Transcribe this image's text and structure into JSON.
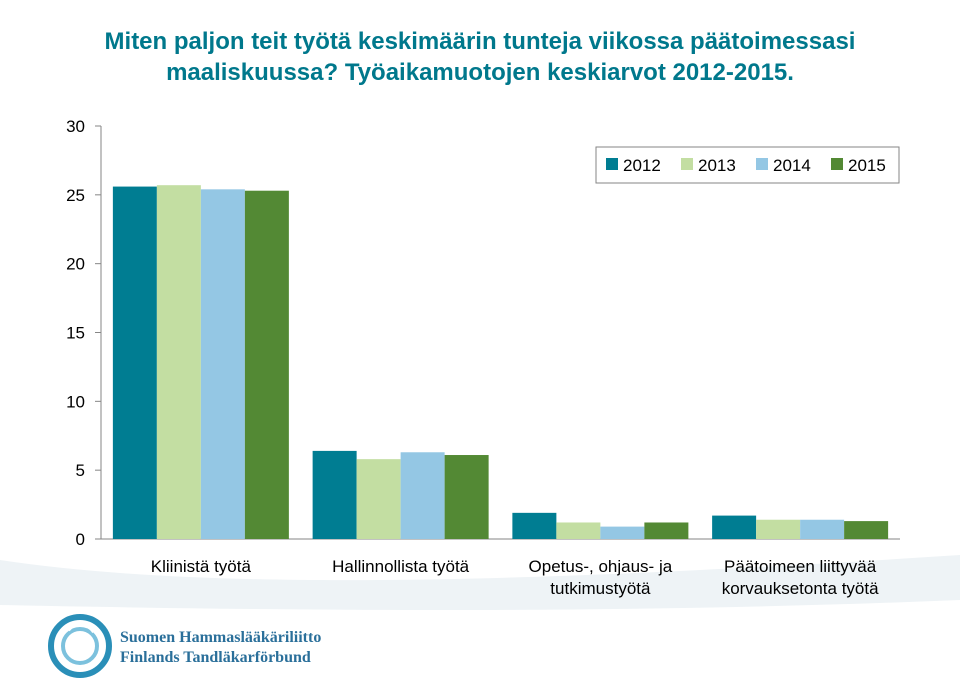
{
  "title": {
    "line1": "Miten paljon teit työtä keskimäärin tunteja viikossa päätoimessasi",
    "line2": "maaliskuussa? Työaikamuotojen keskiarvot 2012-2015."
  },
  "chart_data": {
    "type": "bar",
    "categories": [
      [
        "Kliinistä työtä"
      ],
      [
        "Hallinnollista työtä"
      ],
      [
        "Opetus-, ohjaus- ja",
        "tutkimustyötä"
      ],
      [
        "Päätoimeen liittyvää",
        "korvauksetonta työtä"
      ]
    ],
    "series": [
      {
        "name": "2012",
        "color": "#007d92",
        "values": [
          25.6,
          6.4,
          1.9,
          1.7
        ]
      },
      {
        "name": "2013",
        "color": "#c3dea2",
        "values": [
          25.7,
          5.8,
          1.2,
          1.4
        ]
      },
      {
        "name": "2014",
        "color": "#94c7e4",
        "values": [
          25.4,
          6.3,
          0.9,
          1.4
        ]
      },
      {
        "name": "2015",
        "color": "#538934",
        "values": [
          25.3,
          6.1,
          1.2,
          1.3
        ]
      }
    ],
    "yticks": [
      "0",
      "5",
      "10",
      "15",
      "20",
      "25",
      "30"
    ],
    "ylim": [
      0,
      30
    ],
    "legend_position": "top-right",
    "grid": false
  },
  "logo": {
    "line1": "Suomen Hammaslääkäriliitto",
    "line2": "Finlands Tandläkarförbund"
  }
}
